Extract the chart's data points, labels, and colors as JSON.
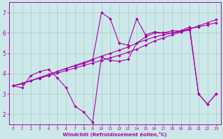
{
  "xlabel": "Windchill (Refroidissement éolien,°C)",
  "background_color": "#cce8e8",
  "grid_color": "#aacccc",
  "line_color": "#aa00aa",
  "xlim": [
    -0.5,
    23.5
  ],
  "ylim": [
    1.5,
    7.5
  ],
  "yticks": [
    2,
    3,
    4,
    5,
    6,
    7
  ],
  "xticks": [
    0,
    1,
    2,
    3,
    4,
    5,
    6,
    7,
    8,
    9,
    10,
    11,
    12,
    13,
    14,
    15,
    16,
    17,
    18,
    19,
    20,
    21,
    22,
    23
  ],
  "series": [
    [
      3.4,
      3.3,
      3.9,
      4.1,
      4.2,
      3.8,
      3.3,
      2.4,
      2.1,
      1.6,
      4.8,
      4.65,
      4.6,
      4.7,
      5.5,
      5.8,
      6.0,
      6.0,
      6.1,
      6.1,
      6.3,
      3.0,
      2.5,
      3.0
    ],
    [
      3.4,
      3.5,
      3.65,
      3.8,
      3.95,
      4.1,
      4.25,
      4.4,
      4.55,
      4.7,
      4.85,
      5.0,
      5.15,
      5.3,
      5.5,
      5.65,
      5.8,
      5.9,
      6.0,
      6.1,
      6.2,
      6.3,
      6.4,
      6.5
    ],
    [
      3.4,
      3.52,
      3.65,
      3.77,
      3.9,
      4.02,
      4.15,
      4.27,
      4.4,
      4.52,
      4.65,
      4.77,
      4.9,
      5.05,
      5.2,
      5.4,
      5.6,
      5.75,
      5.9,
      6.05,
      6.2,
      6.35,
      6.5,
      6.65
    ],
    [
      3.4,
      3.5,
      3.65,
      3.8,
      3.95,
      4.1,
      4.25,
      4.38,
      4.5,
      4.65,
      7.0,
      6.7,
      5.5,
      5.4,
      6.7,
      5.9,
      6.05,
      6.0,
      6.0,
      6.05,
      6.15,
      3.0,
      2.5,
      3.0
    ]
  ]
}
